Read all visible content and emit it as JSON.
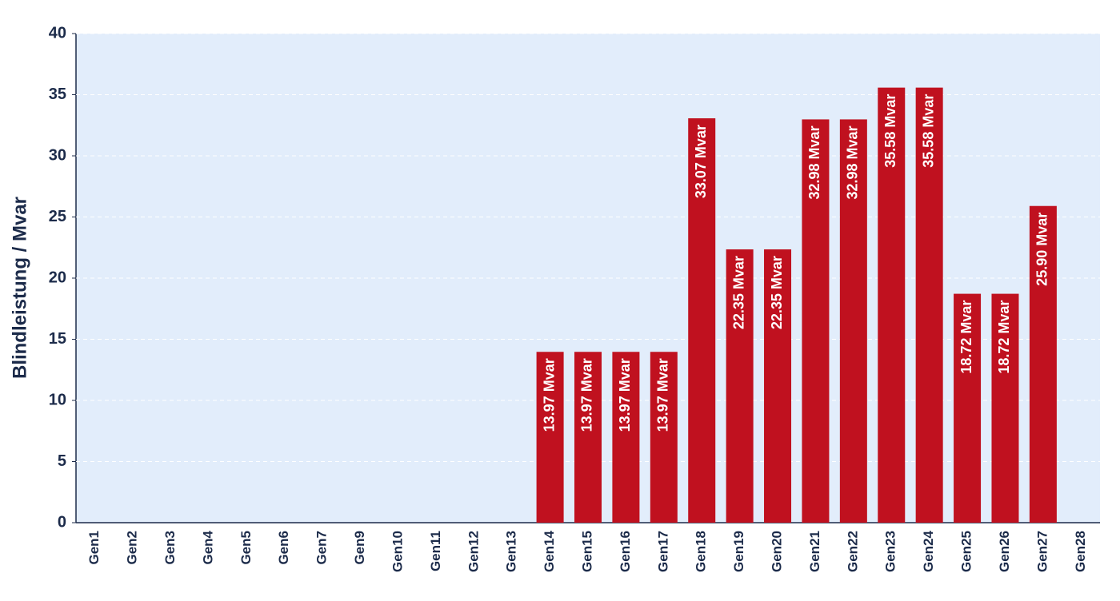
{
  "chart_data": {
    "type": "bar",
    "y_label": "Blindleistung / Mvar",
    "categories": [
      "Gen1",
      "Gen2",
      "Gen3",
      "Gen4",
      "Gen5",
      "Gen6",
      "Gen7",
      "Gen9",
      "Gen10",
      "Gen11",
      "Gen12",
      "Gen13",
      "Gen14",
      "Gen15",
      "Gen16",
      "Gen17",
      "Gen18",
      "Gen19",
      "Gen20",
      "Gen21",
      "Gen22",
      "Gen23",
      "Gen24",
      "Gen25",
      "Gen26",
      "Gen27",
      "Gen28"
    ],
    "values": [
      0,
      0,
      0,
      0,
      0,
      0,
      0,
      0,
      0,
      0,
      0,
      0,
      13.97,
      13.97,
      13.97,
      13.97,
      33.07,
      22.35,
      22.35,
      32.98,
      32.98,
      35.58,
      35.58,
      18.72,
      18.72,
      25.9,
      0
    ],
    "value_labels": [
      null,
      null,
      null,
      null,
      null,
      null,
      null,
      null,
      null,
      null,
      null,
      null,
      "13.97 Mvar",
      "13.97 Mvar",
      "13.97 Mvar",
      "13.97 Mvar",
      "33.07 Mvar",
      "22.35 Mvar",
      "22.35 Mvar",
      "32.98 Mvar",
      "32.98 Mvar",
      "35.58 Mvar",
      "35.58 Mvar",
      "18.72 Mvar",
      "18.72 Mvar",
      "25.90 Mvar",
      null
    ],
    "color": "#c0111f",
    "ylim": [
      0,
      40
    ],
    "yticks": [
      0,
      5,
      10,
      15,
      20,
      25,
      30,
      35,
      40
    ],
    "grid": true
  }
}
